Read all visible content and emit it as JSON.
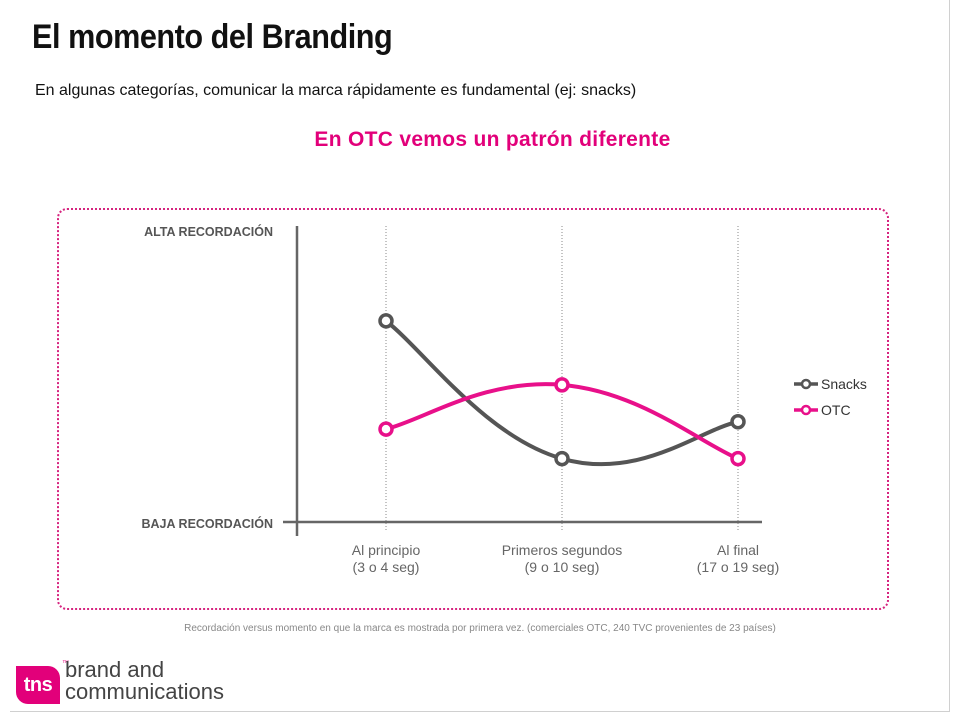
{
  "slide": {
    "title": "El momento del Branding",
    "subtitle": "En algunas categorías, comunicar la marca rápidamente es fundamental (ej: snacks)",
    "headline": "En OTC vemos un patrón diferente",
    "footnote": "Recordación versus momento en que la marca es mostrada por primera vez. (comerciales OTC, 240 TVC provenientes de 23 países)",
    "logo": {
      "badge": "tns",
      "line1": "brand and",
      "line2": "communications"
    }
  },
  "colors": {
    "accent": "#e2007a",
    "snacks": "#555555",
    "otc": "#e8108a",
    "axis": "#666666"
  },
  "chart_data": {
    "type": "line",
    "title": "",
    "categories": [
      "Al principio|(3 o 4 seg)",
      "Primeros segundos|(9 o 10 seg)",
      "Al final|(17 o 19 seg)"
    ],
    "y_axis": {
      "top_label": "ALTA RECORDACIÓN",
      "bottom_label": "BAJA RECORDACIÓN",
      "ylim": [
        0,
        100
      ],
      "tick_values": false
    },
    "series": [
      {
        "name": "Snacks",
        "color": "#555555",
        "values": [
          72,
          16,
          31
        ]
      },
      {
        "name": "OTC",
        "color": "#e8108a",
        "values": [
          28,
          46,
          16
        ]
      }
    ],
    "legend": "right",
    "grid": "vertical-dotted"
  }
}
